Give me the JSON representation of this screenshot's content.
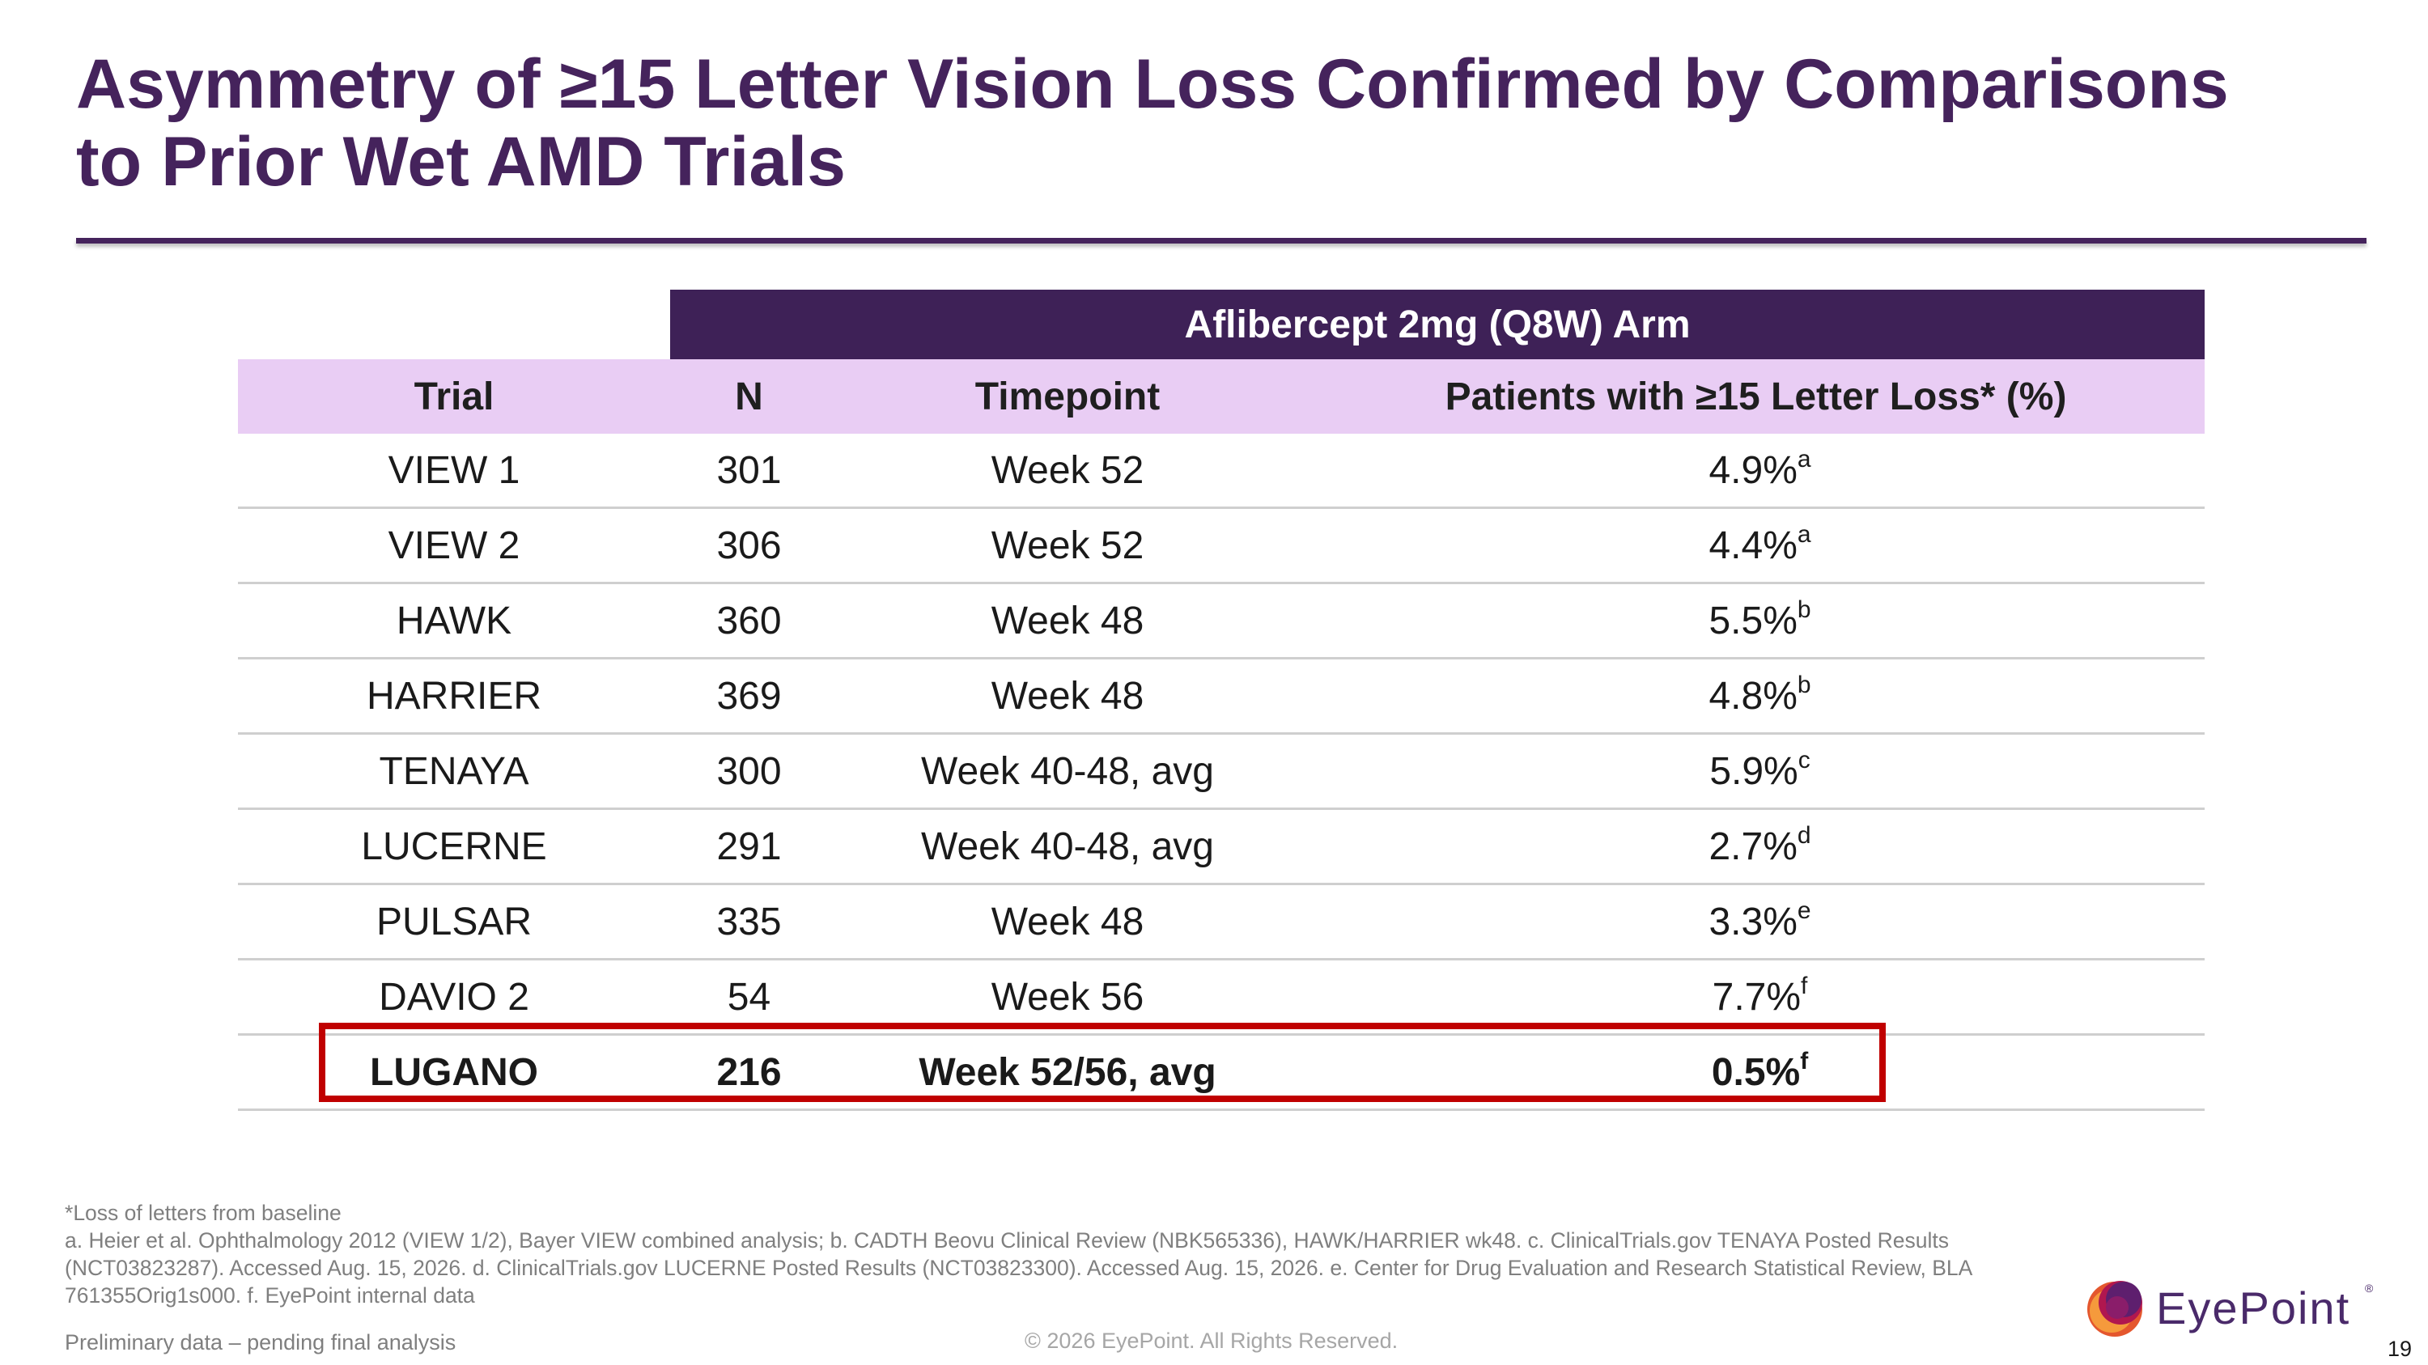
{
  "slide": {
    "title_line1": "Asymmetry of ≥15 Letter Vision Loss Confirmed by Comparisons",
    "title_line2": "to Prior Wet AMD Trials",
    "page_number": "19"
  },
  "table": {
    "arm_header": "Aflibercept 2mg (Q8W) Arm",
    "columns": [
      "Trial",
      "N",
      "Timepoint",
      "Patients with ≥15 Letter Loss* (%)"
    ],
    "rows": [
      {
        "trial": "VIEW 1",
        "n": "301",
        "timepoint": "Week 52",
        "pct": "4.9%",
        "ref": "a"
      },
      {
        "trial": "VIEW 2",
        "n": "306",
        "timepoint": "Week 52",
        "pct": "4.4%",
        "ref": "a"
      },
      {
        "trial": "HAWK",
        "n": "360",
        "timepoint": "Week 48",
        "pct": "5.5%",
        "ref": "b"
      },
      {
        "trial": "HARRIER",
        "n": "369",
        "timepoint": "Week 48",
        "pct": "4.8%",
        "ref": "b"
      },
      {
        "trial": "TENAYA",
        "n": "300",
        "timepoint": "Week 40-48, avg",
        "pct": "5.9%",
        "ref": "c"
      },
      {
        "trial": "LUCERNE",
        "n": "291",
        "timepoint": "Week 40-48, avg",
        "pct": "2.7%",
        "ref": "d"
      },
      {
        "trial": "PULSAR",
        "n": "335",
        "timepoint": "Week 48",
        "pct": "3.3%",
        "ref": "e"
      },
      {
        "trial": "DAVIO 2",
        "n": "54",
        "timepoint": "Week 56",
        "pct": "7.7%",
        "ref": "f"
      },
      {
        "trial": "LUGANO",
        "n": "216",
        "timepoint": "Week 52/56, avg",
        "pct": "0.5%",
        "ref": "f"
      }
    ],
    "highlight_color": "#c00000"
  },
  "footnotes": {
    "line1": "*Loss of letters from baseline",
    "line2": "a. Heier et al. Ophthalmology 2012 (VIEW 1/2), Bayer VIEW combined analysis; b. CADTH Beovu Clinical Review (NBK565336), HAWK/HARRIER wk48. c. ClinicalTrials.gov TENAYA Posted Results",
    "line3": "(NCT03823287). Accessed Aug. 15, 2026. d. ClinicalTrials.gov LUCERNE Posted Results (NCT03823300). Accessed Aug. 15, 2026. e. Center for Drug Evaluation and Research Statistical Review, BLA",
    "line4": "761355Orig1s000. f. EyePoint internal data"
  },
  "footer": {
    "preliminary": "Preliminary data – pending final analysis",
    "copyright": "© 2026 EyePoint. All Rights Reserved."
  },
  "logo": {
    "word": "EyePoint",
    "tm": "®",
    "icon": "eyepoint-logo-icon"
  },
  "colors": {
    "brand_purple": "#45235c",
    "header_purple": "#3e2157",
    "column_header_lavender": "#e9cdf4",
    "highlight_red": "#c00000"
  }
}
